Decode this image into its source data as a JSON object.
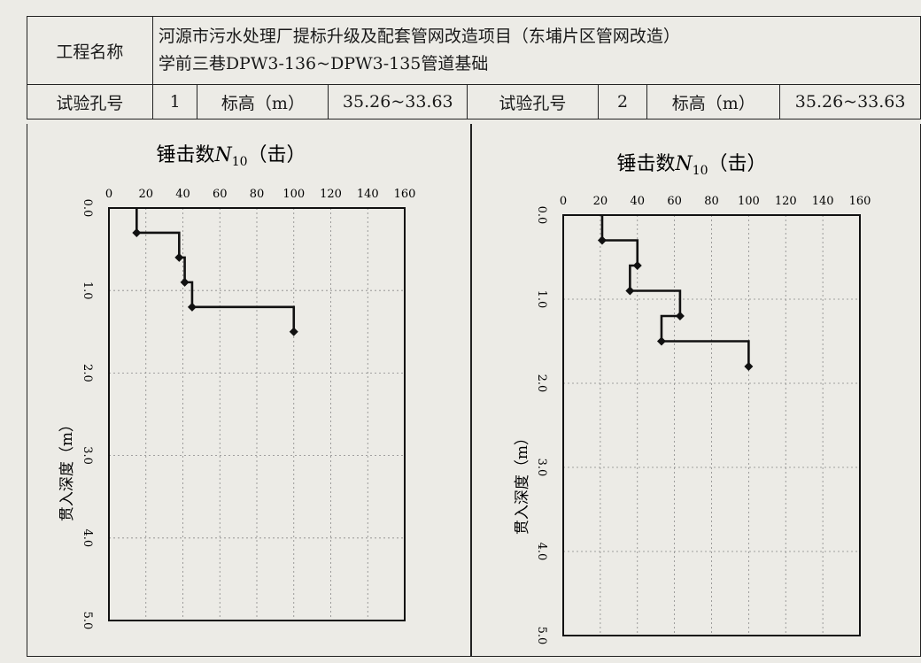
{
  "header": {
    "project_label": "工程名称",
    "project_line1": "河源市污水处理厂提标升级及配套管网改造项目（东埔片区管网改造）",
    "project_line2": "学前三巷DPW3-136~DPW3-135管道基础",
    "hole_label_1": "试验孔号",
    "hole_no_1": "1",
    "elev_label_1": "标高（m）",
    "elev_1": "35.26~33.63",
    "hole_label_2": "试验孔号",
    "hole_no_2": "2",
    "elev_label_2": "标高（m）",
    "elev_2": "35.26~33.63"
  },
  "chart_data": [
    {
      "type": "line",
      "title_prefix": "锤击数",
      "title_var": "N",
      "title_sub": "10",
      "title_suffix": "（击）",
      "ylabel": "贯入深度（m）",
      "x_ticks": [
        "0",
        "20",
        "40",
        "60",
        "80",
        "100",
        "120",
        "140",
        "160"
      ],
      "y_ticks": [
        "0.0",
        "1.0",
        "2.0",
        "3.0",
        "4.0",
        "5.0"
      ],
      "xlim": [
        0,
        160
      ],
      "ylim": [
        0,
        5
      ],
      "grid": true,
      "series": [
        {
          "points": [
            [
              15,
              0.0
            ],
            [
              15,
              0.3
            ],
            [
              38,
              0.3
            ],
            [
              38,
              0.6
            ],
            [
              38,
              0.6
            ],
            [
              41,
              0.6
            ],
            [
              41,
              0.9
            ],
            [
              45,
              0.9
            ],
            [
              45,
              1.2
            ],
            [
              100,
              1.2
            ],
            [
              100,
              1.5
            ]
          ],
          "markers": [
            [
              15,
              0.3
            ],
            [
              38,
              0.6
            ],
            [
              41,
              0.9
            ],
            [
              45,
              1.2
            ],
            [
              100,
              1.5
            ]
          ]
        }
      ]
    },
    {
      "type": "line",
      "title_prefix": "锤击数",
      "title_var": "N",
      "title_sub": "10",
      "title_suffix": "（击）",
      "ylabel": "贯入深度（m）",
      "x_ticks": [
        "0",
        "20",
        "40",
        "60",
        "80",
        "100",
        "120",
        "140",
        "160"
      ],
      "y_ticks": [
        "0.0",
        "1.0",
        "2.0",
        "3.0",
        "4.0",
        "5.0"
      ],
      "xlim": [
        0,
        160
      ],
      "ylim": [
        0,
        5
      ],
      "grid": true,
      "series": [
        {
          "points": [
            [
              21,
              0.0
            ],
            [
              21,
              0.3
            ],
            [
              40,
              0.3
            ],
            [
              40,
              0.6
            ],
            [
              36,
              0.6
            ],
            [
              36,
              0.9
            ],
            [
              63,
              0.9
            ],
            [
              63,
              1.2
            ],
            [
              53,
              1.2
            ],
            [
              53,
              1.5
            ],
            [
              100,
              1.5
            ],
            [
              100,
              1.8
            ]
          ],
          "markers": [
            [
              21,
              0.3
            ],
            [
              40,
              0.6
            ],
            [
              36,
              0.9
            ],
            [
              63,
              1.2
            ],
            [
              53,
              1.5
            ],
            [
              100,
              1.8
            ]
          ]
        }
      ]
    }
  ]
}
